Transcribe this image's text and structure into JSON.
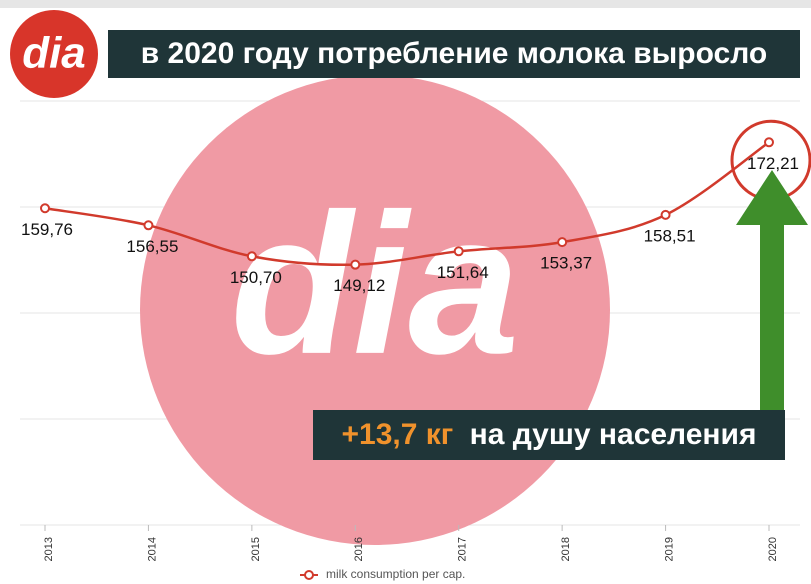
{
  "chart_data": {
    "type": "line",
    "title": "в 2020 году потребление молока выросло",
    "logo": "dia",
    "categories": [
      "2013",
      "2014",
      "2015",
      "2016",
      "2017",
      "2018",
      "2019",
      "2020"
    ],
    "series": [
      {
        "name": "milk consumption per cap.",
        "color": "#d13a2c",
        "values": [
          159.76,
          156.55,
          150.7,
          149.12,
          151.64,
          153.37,
          158.51,
          172.21
        ],
        "value_labels": [
          "159,76",
          "156,55",
          "150,70",
          "149,12",
          "151,64",
          "153,37",
          "158,51",
          "172,21"
        ]
      }
    ],
    "ylim": [
      100,
      190
    ],
    "yticks": [
      100,
      120,
      140,
      160,
      180
    ],
    "grid": true,
    "annotation": {
      "highlight": "+13,7 кг",
      "text": "на душу населения"
    }
  }
}
